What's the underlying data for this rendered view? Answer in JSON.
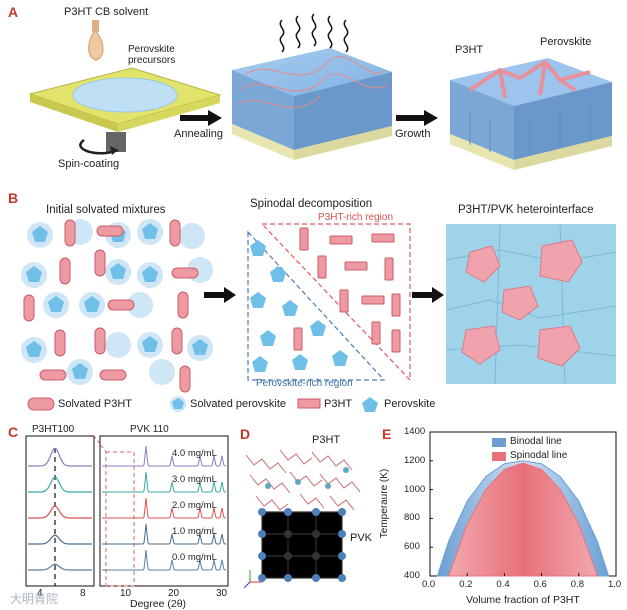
{
  "panel_a": {
    "letter": "A",
    "solvent_label": "P3HT CB solvent",
    "precursor_label": "Perovskite\nprecursors",
    "spin_label": "Spin-coating",
    "anneal_label": "Annealing",
    "growth_label": "Growth",
    "p3ht_label": "P3HT",
    "perovskite_label": "Perovskite"
  },
  "panel_b": {
    "letter": "B",
    "title_1": "Initial solvated mixtures",
    "title_2": "Spinodal decomposition",
    "title_3": "P3HT/PVK heterointerface",
    "p3ht_rich": "P3HT-rich region",
    "pvk_rich": "Perovskite-rich region",
    "legend": {
      "solvated_p3ht": "Solvated P3HT",
      "solvated_perovskite": "Solvated perovskite",
      "p3ht": "P3HT",
      "perovskite": "Perovskite"
    }
  },
  "panel_c": {
    "letter": "C",
    "left_title": "P3HT100",
    "right_title": "PVK 110",
    "xlabel": "Degree (2θ)",
    "left_ticks": [
      "4",
      "8"
    ],
    "right_ticks": [
      "10",
      "20",
      "30"
    ],
    "trace_labels": [
      "4.0 mg/mL",
      "3.0 mg/mL",
      "2.0 mg/mL",
      "1.0 mg/mL",
      "0.0 mg/mL"
    ],
    "trace_colors": [
      "#8e7cc3",
      "#3aaaa0",
      "#d9534f",
      "#4a6d8c",
      "#5b7f99"
    ]
  },
  "panel_d": {
    "letter": "D",
    "p3ht_label": "P3HT",
    "pvk_label": "PVK"
  },
  "chart_data": {
    "type": "area",
    "ylabel": "Temperaure (K)",
    "xlabel": "Volume fraction of P3HT",
    "xlim": [
      0.0,
      1.0
    ],
    "ylim": [
      400,
      1400
    ],
    "x_ticks": [
      "0.0",
      "0.2",
      "0.4",
      "0.6",
      "0.8",
      "1.0"
    ],
    "y_ticks": [
      "400",
      "600",
      "800",
      "1000",
      "1200",
      "1400"
    ],
    "series": [
      {
        "name": "Binodal line",
        "color": "#6b9fd4",
        "x": [
          0.04,
          0.1,
          0.2,
          0.3,
          0.4,
          0.5,
          0.6,
          0.7,
          0.8,
          0.9,
          0.96
        ],
        "y": [
          400,
          640,
          920,
          1090,
          1180,
          1200,
          1180,
          1090,
          920,
          640,
          400
        ]
      },
      {
        "name": "Spinodal line",
        "color": "#e8707a",
        "x": [
          0.1,
          0.2,
          0.3,
          0.4,
          0.5,
          0.6,
          0.7,
          0.8,
          0.9
        ],
        "y": [
          400,
          760,
          1000,
          1140,
          1185,
          1140,
          1000,
          760,
          400
        ]
      }
    ]
  },
  "panel_e_letter": "E",
  "watermark": "大明青院"
}
